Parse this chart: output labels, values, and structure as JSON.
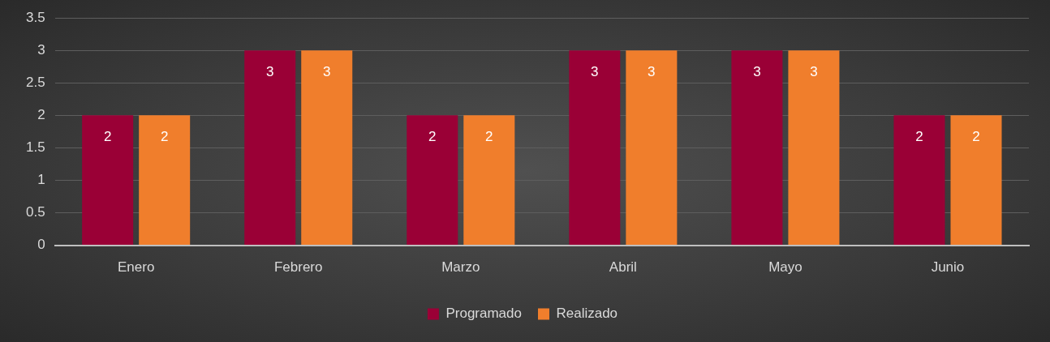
{
  "chart_data": {
    "type": "bar",
    "categories": [
      "Enero",
      "Febrero",
      "Marzo",
      "Abril",
      "Mayo",
      "Junio"
    ],
    "series": [
      {
        "name": "Programado",
        "color": "#9a0036",
        "values": [
          2,
          3,
          2,
          3,
          3,
          2
        ]
      },
      {
        "name": "Realizado",
        "color": "#f07e2c",
        "values": [
          2,
          3,
          2,
          3,
          3,
          2
        ]
      }
    ],
    "ylim": [
      0,
      3.5
    ],
    "yticks": [
      0,
      0.5,
      1,
      1.5,
      2,
      2.5,
      3,
      3.5
    ],
    "grid": "y",
    "legend": "bottom",
    "data_labels": true
  }
}
